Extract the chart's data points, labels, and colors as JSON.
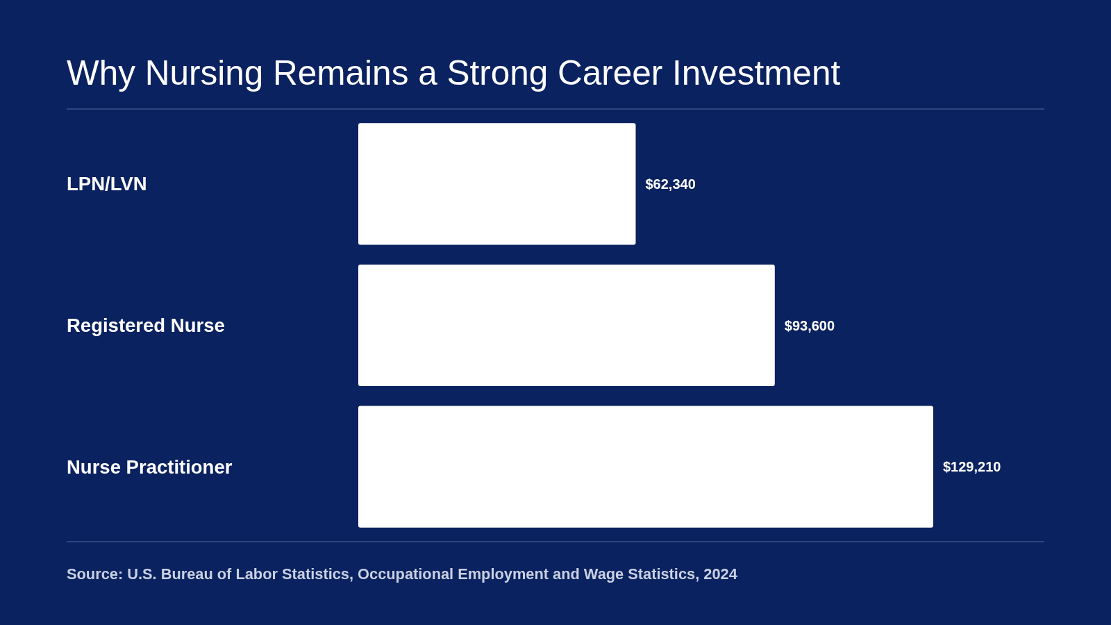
{
  "chart_data": {
    "type": "bar",
    "orientation": "horizontal",
    "title": "Why Nursing Remains a Strong Career Investment",
    "categories": [
      "LPN/LVN",
      "Registered Nurse",
      "Nurse Practitioner"
    ],
    "values": [
      62340,
      93600,
      129210
    ],
    "value_labels": [
      "$62,340",
      "$93,600",
      "$129,210"
    ],
    "color": "#ffffff",
    "annotations": [
      "Source: U.S. Bureau of Labor Statistics, Occupational Employment and Wage Statistics, 2024"
    ]
  }
}
